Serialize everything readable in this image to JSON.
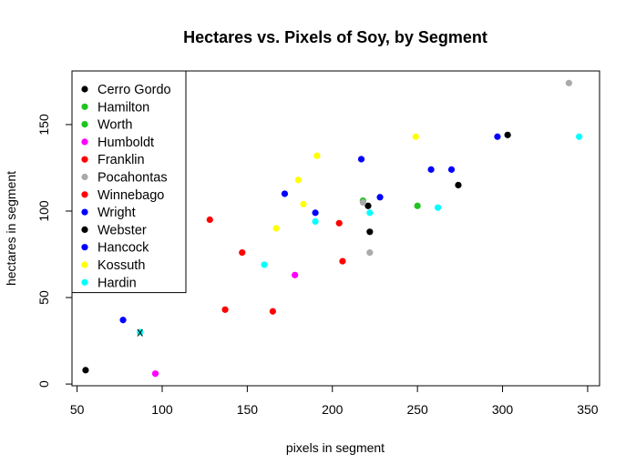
{
  "chart_data": {
    "type": "scatter",
    "title": "Hectares vs. Pixels of Soy, by Segment",
    "xlabel": "pixels in segment",
    "ylabel": "hectares in segment",
    "xlim": [
      47,
      357
    ],
    "ylim": [
      -1,
      181
    ],
    "xticks": [
      50,
      100,
      150,
      200,
      250,
      300,
      350
    ],
    "yticks": [
      0,
      50,
      100,
      150
    ],
    "legend_position": "top-left",
    "series": [
      {
        "name": "Cerro Gordo",
        "color": "#000000",
        "points": [
          [
            55,
            8
          ],
          [
            221,
            103
          ],
          [
            274,
            115
          ],
          [
            303,
            144
          ]
        ]
      },
      {
        "name": "Hamilton",
        "color": "#1fc41f",
        "points": [
          [
            218,
            106
          ],
          [
            250,
            103
          ]
        ]
      },
      {
        "name": "Worth",
        "color": "#1fc41f",
        "points": []
      },
      {
        "name": "Humboldt",
        "color": "#ff00ff",
        "points": [
          [
            96,
            6
          ],
          [
            178,
            63
          ]
        ]
      },
      {
        "name": "Franklin",
        "color": "#ff0000",
        "points": [
          [
            137,
            43
          ],
          [
            165,
            42
          ]
        ]
      },
      {
        "name": "Pocahontas",
        "color": "#aaaaaa",
        "points": [
          [
            218,
            105
          ],
          [
            222,
            76
          ],
          [
            339,
            174
          ]
        ]
      },
      {
        "name": "Winnebago",
        "color": "#ff0000",
        "points": [
          [
            128,
            95
          ],
          [
            147,
            76
          ],
          [
            204,
            93
          ],
          [
            206,
            71
          ]
        ]
      },
      {
        "name": "Wright",
        "color": "#0000ff",
        "points": [
          [
            77,
            37
          ],
          [
            172,
            110
          ],
          [
            190,
            99
          ],
          [
            217,
            130
          ],
          [
            228,
            108
          ]
        ]
      },
      {
        "name": "Webster",
        "color": "#000000",
        "points": [
          [
            222,
            88
          ]
        ]
      },
      {
        "name": "Hancock",
        "color": "#0000ff",
        "points": [
          [
            258,
            124
          ],
          [
            270,
            124
          ],
          [
            297,
            143
          ]
        ]
      },
      {
        "name": "Kossuth",
        "color": "#ffff00",
        "points": [
          [
            167,
            90
          ],
          [
            180,
            118
          ],
          [
            183,
            104
          ],
          [
            191,
            132
          ],
          [
            249,
            143
          ]
        ]
      },
      {
        "name": "Hardin",
        "color": "#00ffff",
        "points": [
          [
            160,
            69
          ],
          [
            190,
            94
          ],
          [
            222,
            99
          ],
          [
            262,
            102
          ],
          [
            345,
            143
          ]
        ]
      }
    ],
    "annotations": [
      {
        "text": "x",
        "x": 87,
        "y": 30
      }
    ]
  }
}
